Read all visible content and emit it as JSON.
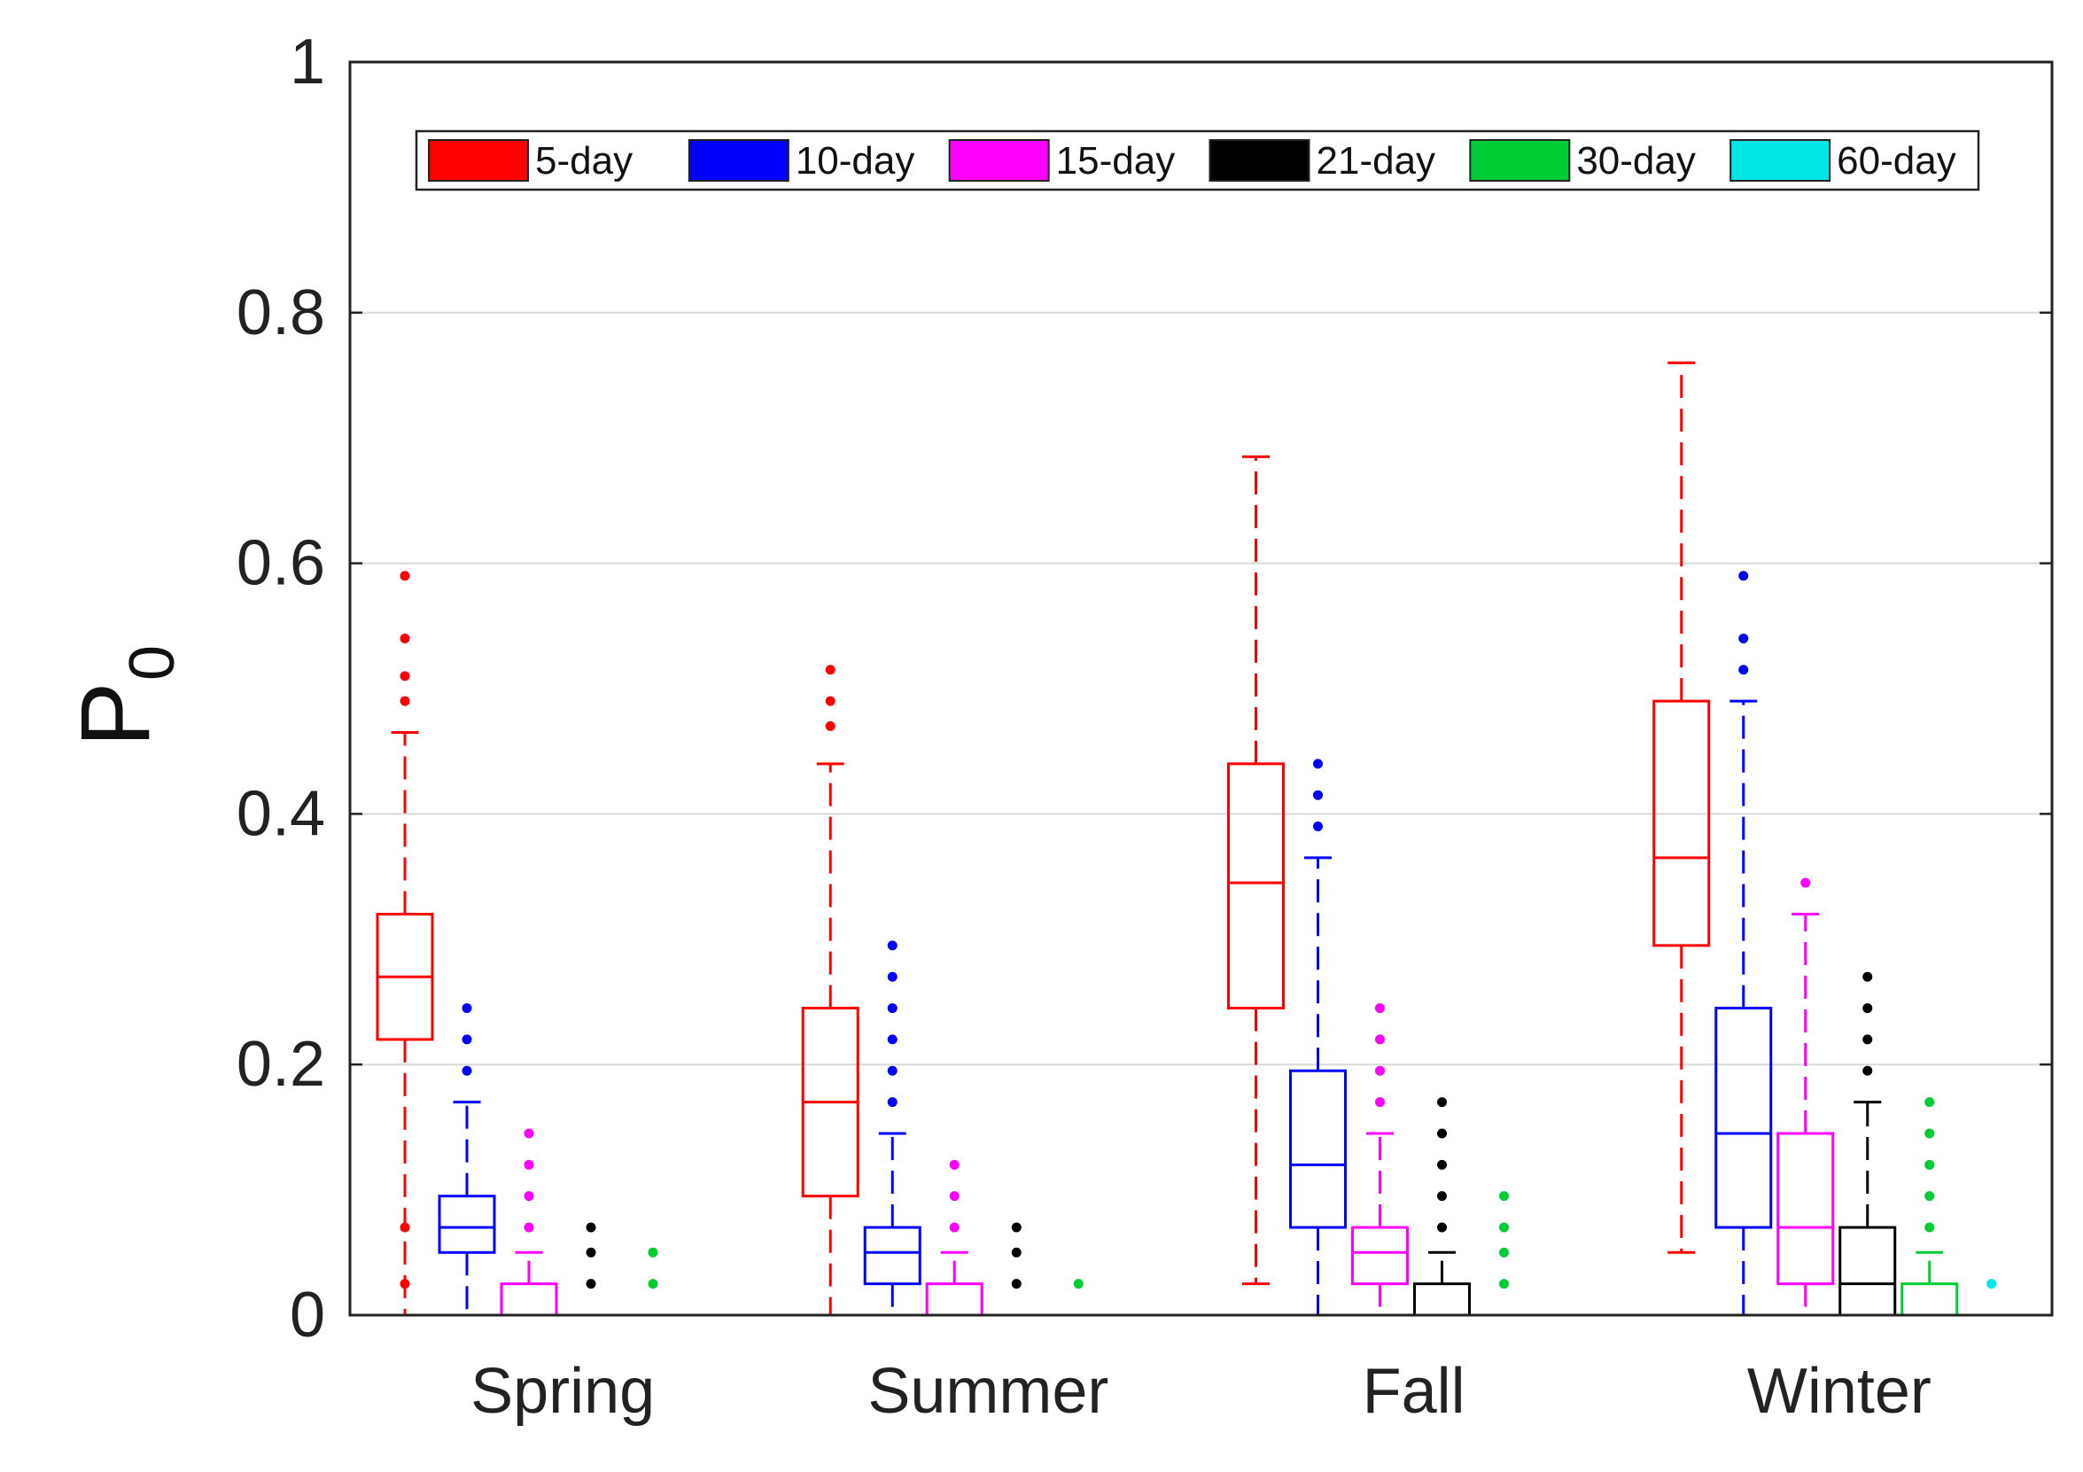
{
  "chart_data": {
    "type": "boxplot",
    "title": "",
    "xlabel": "",
    "ylabel": "P",
    "ylabel_subscript": "0",
    "ylim": [
      0,
      1
    ],
    "yticks": [
      0,
      0.2,
      0.4,
      0.6,
      0.8,
      1
    ],
    "ytick_labels": [
      "0",
      "0.2",
      "0.4",
      "0.6",
      "0.8",
      "1"
    ],
    "grid": "horizontal",
    "legend_position": "top, horizontal",
    "categories": [
      "Spring",
      "Summer",
      "Fall",
      "Winter"
    ],
    "series": [
      {
        "name": "5-day",
        "color": "#ff0000",
        "boxes": [
          {
            "lw": 0.0,
            "q1": 0.22,
            "median": 0.27,
            "q3": 0.32,
            "uw": 0.465,
            "outliers": [
              0.025,
              0.07,
              0.49,
              0.51,
              0.54,
              0.59
            ]
          },
          {
            "lw": 0.0,
            "q1": 0.095,
            "median": 0.17,
            "q3": 0.245,
            "uw": 0.44,
            "outliers": [
              0.47,
              0.49,
              0.515
            ]
          },
          {
            "lw": 0.025,
            "q1": 0.245,
            "median": 0.345,
            "q3": 0.44,
            "uw": 0.685,
            "outliers": []
          },
          {
            "lw": 0.05,
            "q1": 0.295,
            "median": 0.365,
            "q3": 0.49,
            "uw": 0.76,
            "outliers": []
          }
        ]
      },
      {
        "name": "10-day",
        "color": "#0000ff",
        "boxes": [
          {
            "lw": 0.0,
            "q1": 0.05,
            "median": 0.07,
            "q3": 0.095,
            "uw": 0.17,
            "outliers": [
              0.195,
              0.22,
              0.245
            ]
          },
          {
            "lw": 0.0,
            "q1": 0.025,
            "median": 0.05,
            "q3": 0.07,
            "uw": 0.145,
            "outliers": [
              0.17,
              0.195,
              0.22,
              0.245,
              0.27,
              0.295
            ]
          },
          {
            "lw": 0.0,
            "q1": 0.07,
            "median": 0.12,
            "q3": 0.195,
            "uw": 0.365,
            "outliers": [
              0.39,
              0.415,
              0.44
            ]
          },
          {
            "lw": 0.0,
            "q1": 0.07,
            "median": 0.145,
            "q3": 0.245,
            "uw": 0.49,
            "outliers": [
              0.515,
              0.54,
              0.59
            ]
          }
        ]
      },
      {
        "name": "15-day",
        "color": "#ff00ff",
        "boxes": [
          {
            "lw": 0.0,
            "q1": 0.0,
            "median": 0.0,
            "q3": 0.025,
            "uw": 0.05,
            "outliers": [
              0.07,
              0.095,
              0.12,
              0.145
            ]
          },
          {
            "lw": 0.0,
            "q1": 0.0,
            "median": 0.0,
            "q3": 0.025,
            "uw": 0.05,
            "outliers": [
              0.07,
              0.095,
              0.12
            ]
          },
          {
            "lw": 0.0,
            "q1": 0.025,
            "median": 0.05,
            "q3": 0.07,
            "uw": 0.145,
            "outliers": [
              0.17,
              0.195,
              0.22,
              0.245
            ]
          },
          {
            "lw": 0.0,
            "q1": 0.025,
            "median": 0.07,
            "q3": 0.145,
            "uw": 0.32,
            "outliers": [
              0.345
            ]
          }
        ]
      },
      {
        "name": "21-day",
        "color": "#000000",
        "boxes": [
          {
            "lw": 0.0,
            "q1": 0.0,
            "median": 0.0,
            "q3": 0.0,
            "uw": 0.0,
            "outliers": [
              0.025,
              0.05,
              0.07
            ]
          },
          {
            "lw": 0.0,
            "q1": 0.0,
            "median": 0.0,
            "q3": 0.0,
            "uw": 0.0,
            "outliers": [
              0.025,
              0.05,
              0.07
            ]
          },
          {
            "lw": 0.0,
            "q1": 0.0,
            "median": 0.0,
            "q3": 0.025,
            "uw": 0.05,
            "outliers": [
              0.07,
              0.095,
              0.12,
              0.145,
              0.17
            ]
          },
          {
            "lw": 0.0,
            "q1": 0.0,
            "median": 0.025,
            "q3": 0.07,
            "uw": 0.17,
            "outliers": [
              0.195,
              0.22,
              0.245,
              0.27
            ]
          }
        ]
      },
      {
        "name": "30-day",
        "color": "#00cc33",
        "boxes": [
          {
            "lw": 0.0,
            "q1": 0.0,
            "median": 0.0,
            "q3": 0.0,
            "uw": 0.0,
            "outliers": [
              0.025,
              0.05
            ]
          },
          {
            "lw": 0.0,
            "q1": 0.0,
            "median": 0.0,
            "q3": 0.0,
            "uw": 0.0,
            "outliers": [
              0.025
            ]
          },
          {
            "lw": 0.0,
            "q1": 0.0,
            "median": 0.0,
            "q3": 0.0,
            "uw": 0.0,
            "outliers": [
              0.025,
              0.05,
              0.07,
              0.095
            ]
          },
          {
            "lw": 0.0,
            "q1": 0.0,
            "median": 0.0,
            "q3": 0.025,
            "uw": 0.05,
            "outliers": [
              0.07,
              0.095,
              0.12,
              0.145,
              0.17
            ]
          }
        ]
      },
      {
        "name": "60-day",
        "color": "#00e5e5",
        "boxes": [
          {
            "lw": 0.0,
            "q1": 0.0,
            "median": 0.0,
            "q3": 0.0,
            "uw": 0.0,
            "outliers": []
          },
          {
            "lw": 0.0,
            "q1": 0.0,
            "median": 0.0,
            "q3": 0.0,
            "uw": 0.0,
            "outliers": []
          },
          {
            "lw": 0.0,
            "q1": 0.0,
            "median": 0.0,
            "q3": 0.0,
            "uw": 0.0,
            "outliers": []
          },
          {
            "lw": 0.0,
            "q1": 0.0,
            "median": 0.0,
            "q3": 0.0,
            "uw": 0.0,
            "outliers": [
              0.025
            ]
          }
        ]
      }
    ]
  }
}
